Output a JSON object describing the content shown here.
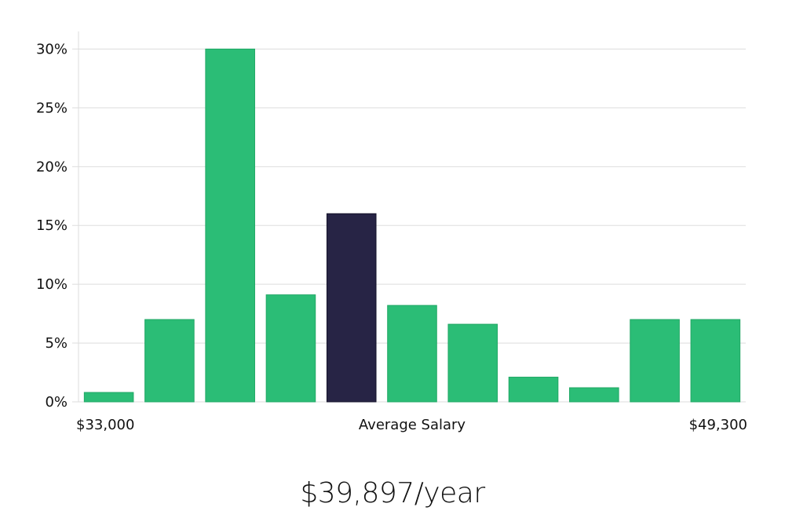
{
  "chart_data": {
    "type": "bar",
    "ylim": [
      0,
      31.5
    ],
    "yticks": [
      {
        "value": 0,
        "label": "0%"
      },
      {
        "value": 5,
        "label": "5%"
      },
      {
        "value": 10,
        "label": "10%"
      },
      {
        "value": 15,
        "label": "15%"
      },
      {
        "value": 20,
        "label": "20%"
      },
      {
        "value": 25,
        "label": "25%"
      },
      {
        "value": 30,
        "label": "30%"
      }
    ],
    "values": [
      0.8,
      7.0,
      30.0,
      9.1,
      16.0,
      8.2,
      6.6,
      2.1,
      1.2,
      7.0,
      7.0
    ],
    "highlight_index": 4,
    "colors": {
      "bar": "#2bbd76",
      "highlight": "#272445",
      "grid": "#dddddd",
      "axis": "#dddddd"
    },
    "x_labels": {
      "left": "$33,000",
      "center": "Average Salary",
      "right": "$49,300"
    },
    "grid": true
  },
  "salary_text": "$39,897/year"
}
